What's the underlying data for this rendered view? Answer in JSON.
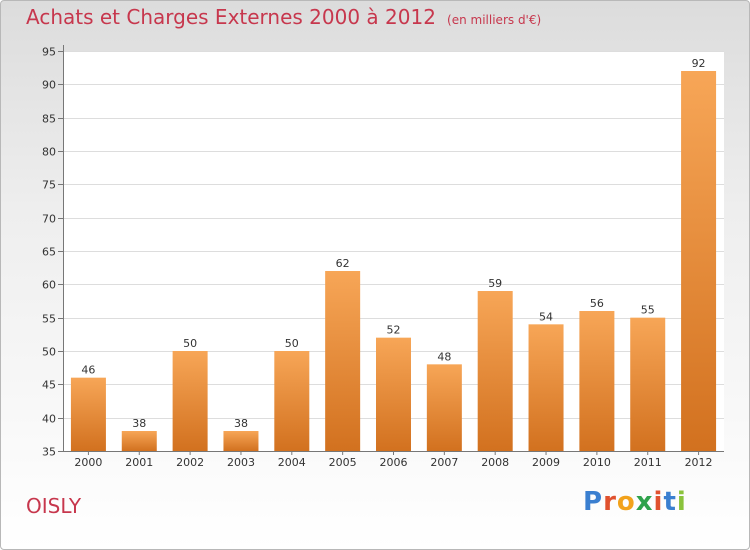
{
  "header": {
    "title": "Achats et Charges Externes 2000 à 2012",
    "unit": "(en milliers d'€)"
  },
  "footer": {
    "commune": "OISLY",
    "brand_letters": [
      "P",
      "r",
      "o",
      "x",
      "i",
      "t",
      "i"
    ],
    "brand_colors": [
      "#3a7fd0",
      "#e0512e",
      "#f2a21b",
      "#2fa24b",
      "#e0512e",
      "#3a7fd0",
      "#8ac33c"
    ]
  },
  "colors": {
    "bar_light": "#f7a657",
    "bar_dark": "#d2711f",
    "accent": "#c7374d",
    "grid": "#dddddd"
  },
  "chart_data": {
    "type": "bar",
    "title": "Achats et Charges Externes 2000 à 2012",
    "subtitle": "(en milliers d'€)",
    "xlabel": "",
    "ylabel": "",
    "categories": [
      "2000",
      "2001",
      "2002",
      "2003",
      "2004",
      "2005",
      "2006",
      "2007",
      "2008",
      "2009",
      "2010",
      "2011",
      "2012"
    ],
    "values": [
      46,
      38,
      50,
      38,
      50,
      62,
      52,
      48,
      59,
      54,
      56,
      55,
      92
    ],
    "ylim": [
      35,
      95
    ],
    "yticks": [
      35,
      40,
      45,
      50,
      55,
      60,
      65,
      70,
      75,
      80,
      85,
      90,
      95
    ],
    "grid": true
  }
}
